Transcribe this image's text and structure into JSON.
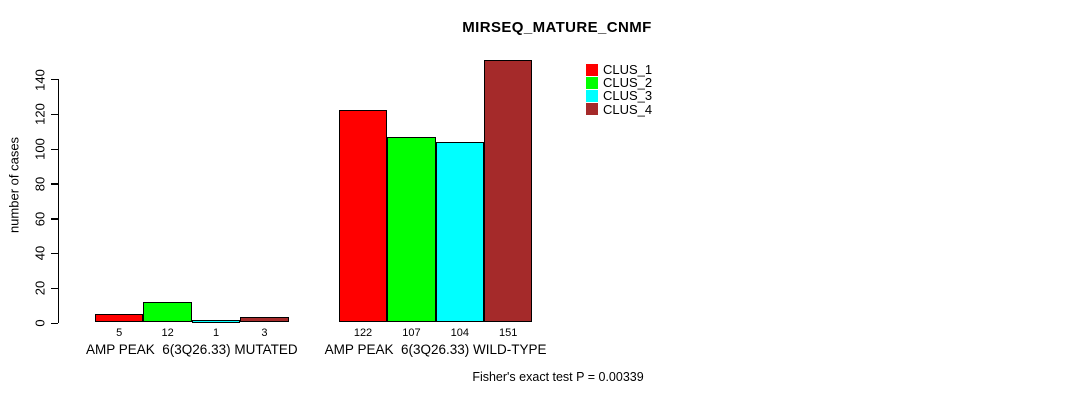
{
  "chart_data": {
    "type": "bar",
    "title": "MIRSEQ_MATURE_CNMF",
    "ylabel": "number of cases",
    "xlabel": "",
    "ylim": [
      0,
      151
    ],
    "yticks": [
      0,
      20,
      40,
      60,
      80,
      100,
      120,
      140
    ],
    "grid": false,
    "legend_position": "top-right",
    "bar_border_color": "#000000",
    "categories": [
      "AMP PEAK  6(3Q26.33) MUTATED",
      "AMP PEAK  6(3Q26.33) WILD-TYPE"
    ],
    "series": [
      {
        "name": "CLUS_1",
        "color": "#FF0000",
        "values": [
          5,
          122
        ]
      },
      {
        "name": "CLUS_2",
        "color": "#00FF00",
        "values": [
          12,
          107
        ]
      },
      {
        "name": "CLUS_3",
        "color": "#00FFFF",
        "values": [
          1,
          104
        ]
      },
      {
        "name": "CLUS_4",
        "color": "#A52A2A",
        "values": [
          3,
          151
        ]
      }
    ],
    "annotation": "Fisher's exact test P = 0.00339"
  }
}
